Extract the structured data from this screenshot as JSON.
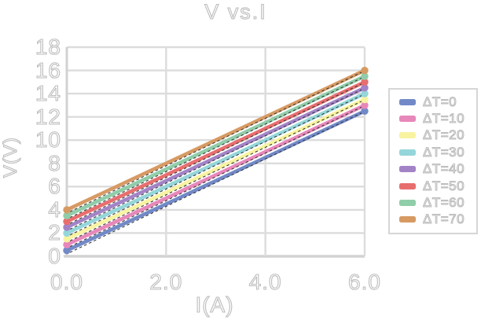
{
  "title": "V vs.I",
  "colors": {
    "background": "#ffffff",
    "gridline": "#dcdcdc",
    "axis_line": "#d2d2d2",
    "text_outline": "#bdbdbd",
    "trendline": "#3a3a3a",
    "legend_border": "#d6d6d6"
  },
  "chart_data": {
    "type": "line",
    "title": "V vs.I",
    "xlabel": "I(A)",
    "ylabel": "V(V)",
    "xlim": [
      0,
      6
    ],
    "ylim": [
      0,
      18
    ],
    "x_tick_labels": [
      "0.0",
      "2.0",
      "4.0",
      "6.0"
    ],
    "x_tick_values": [
      0,
      2,
      4,
      6
    ],
    "y_tick_labels": [
      "0",
      "2",
      "4",
      "6",
      "8",
      "10",
      "12",
      "14",
      "16",
      "18"
    ],
    "y_tick_values": [
      0,
      2,
      4,
      6,
      8,
      10,
      12,
      14,
      16,
      18
    ],
    "grid": true,
    "legend_position": "right",
    "trendlines": "each series has a black dashed linear trendline",
    "slope_V_per_A": 2.0,
    "series": [
      {
        "name": "ΔT=0",
        "color": "#7289c8",
        "x": [
          0,
          6
        ],
        "y": [
          0.5,
          12.5
        ]
      },
      {
        "name": "ΔT=10",
        "color": "#e887ba",
        "x": [
          0,
          6
        ],
        "y": [
          1.0,
          13.0
        ]
      },
      {
        "name": "ΔT=20",
        "color": "#f8f3a0",
        "x": [
          0,
          6
        ],
        "y": [
          1.5,
          13.5
        ]
      },
      {
        "name": "ΔT=30",
        "color": "#94d6da",
        "x": [
          0,
          6
        ],
        "y": [
          2.0,
          14.0
        ]
      },
      {
        "name": "ΔT=40",
        "color": "#a383c7",
        "x": [
          0,
          6
        ],
        "y": [
          2.5,
          14.5
        ]
      },
      {
        "name": "ΔT=50",
        "color": "#e86e6e",
        "x": [
          0,
          6
        ],
        "y": [
          3.0,
          15.0
        ]
      },
      {
        "name": "ΔT=60",
        "color": "#90cda9",
        "x": [
          0,
          6
        ],
        "y": [
          3.5,
          15.5
        ]
      },
      {
        "name": "ΔT=70",
        "color": "#d79a63",
        "x": [
          0,
          6
        ],
        "y": [
          4.0,
          16.0
        ]
      }
    ]
  }
}
